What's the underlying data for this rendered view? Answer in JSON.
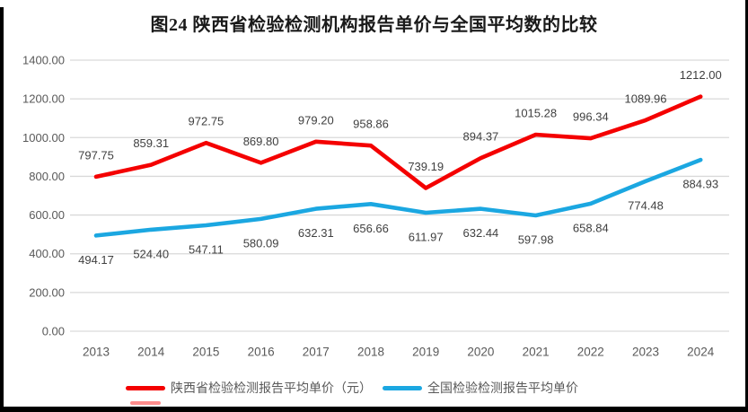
{
  "title": "图24 陕西省检验检测机构报告单价与全国平均数的比较",
  "chart_data": {
    "type": "line",
    "title": "图24 陕西省检验检测机构报告单价与全国平均数的比较",
    "categories": [
      "2013",
      "2014",
      "2015",
      "2016",
      "2017",
      "2018",
      "2019",
      "2020",
      "2021",
      "2022",
      "2023",
      "2024"
    ],
    "series": [
      {
        "name": "陕西省检验检测报告平均单价（元）",
        "color": "#f40000",
        "values": [
          797.75,
          859.31,
          972.75,
          869.8,
          979.2,
          958.86,
          739.19,
          894.37,
          1015.28,
          996.34,
          1089.96,
          1212.0
        ],
        "label_side": "above"
      },
      {
        "name": "全国检验检测报告平均单价",
        "color": "#1ba7e1",
        "values": [
          494.17,
          524.4,
          547.11,
          580.09,
          632.31,
          656.66,
          611.97,
          632.44,
          597.98,
          658.84,
          774.48,
          884.93
        ],
        "label_side": "below"
      }
    ],
    "ylim": [
      0,
      1400
    ],
    "yticks": [
      0,
      200,
      400,
      600,
      800,
      1000,
      1200,
      1400
    ],
    "ytick_format_decimals": 2,
    "xlabel": "",
    "ylabel": "",
    "grid": true,
    "legend_position": "bottom",
    "colors": {
      "gridline": "#d9d9d9",
      "tick_text": "#595959",
      "data_label_text": "#404040"
    }
  }
}
